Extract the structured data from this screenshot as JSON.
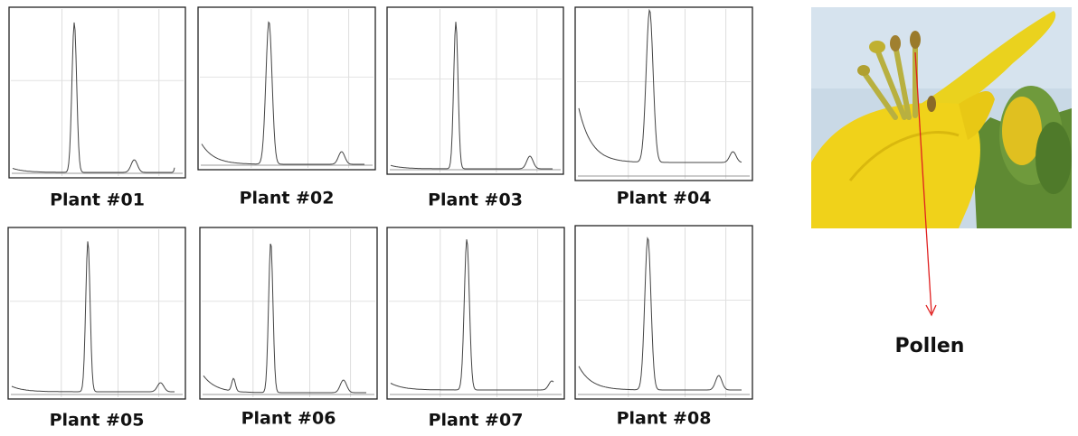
{
  "panels": [
    {
      "label": "Plant #01"
    },
    {
      "label": "Plant #02"
    },
    {
      "label": "Plant #03"
    },
    {
      "label": "Plant #04"
    },
    {
      "label": "Plant #05"
    },
    {
      "label": "Plant #06"
    },
    {
      "label": "Plant #07"
    },
    {
      "label": "Plant #08"
    }
  ],
  "photo_label": "Pollen"
}
